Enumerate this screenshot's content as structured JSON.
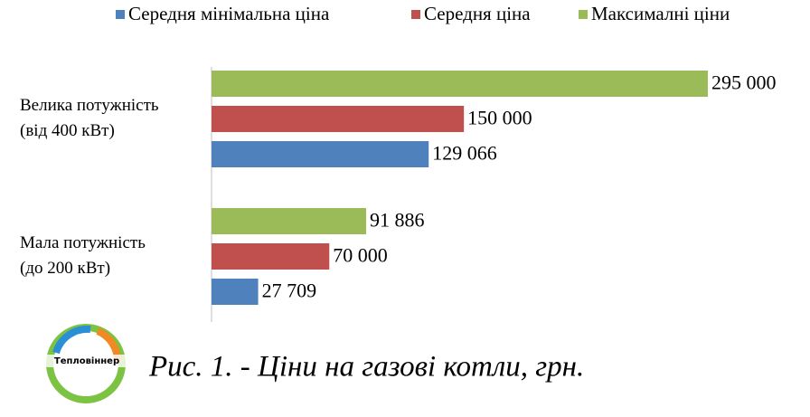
{
  "chart_data": {
    "type": "hbar",
    "categories": [
      [
        "Велика потужність",
        "(від 400 кВт)"
      ],
      [
        "Мала потужність",
        "(до 200 кВт)"
      ]
    ],
    "series": [
      {
        "name": "Середня мінімальна ціна",
        "color": "#4f81bd",
        "values": [
          129066,
          27709
        ],
        "value_labels": [
          "129 066",
          "27 709"
        ]
      },
      {
        "name": "Середня ціна",
        "color": "#c0504d",
        "values": [
          150000,
          70000
        ],
        "value_labels": [
          "150 000",
          "70 000"
        ]
      },
      {
        "name": "Максималні ціни",
        "color": "#9bbb59",
        "values": [
          295000,
          91886
        ],
        "value_labels": [
          "295 000",
          "91 886"
        ]
      }
    ],
    "legend": "top"
  },
  "caption": "Рис.  1. - Ціни на газові котли, грн.",
  "logo": "Тепловіннер"
}
